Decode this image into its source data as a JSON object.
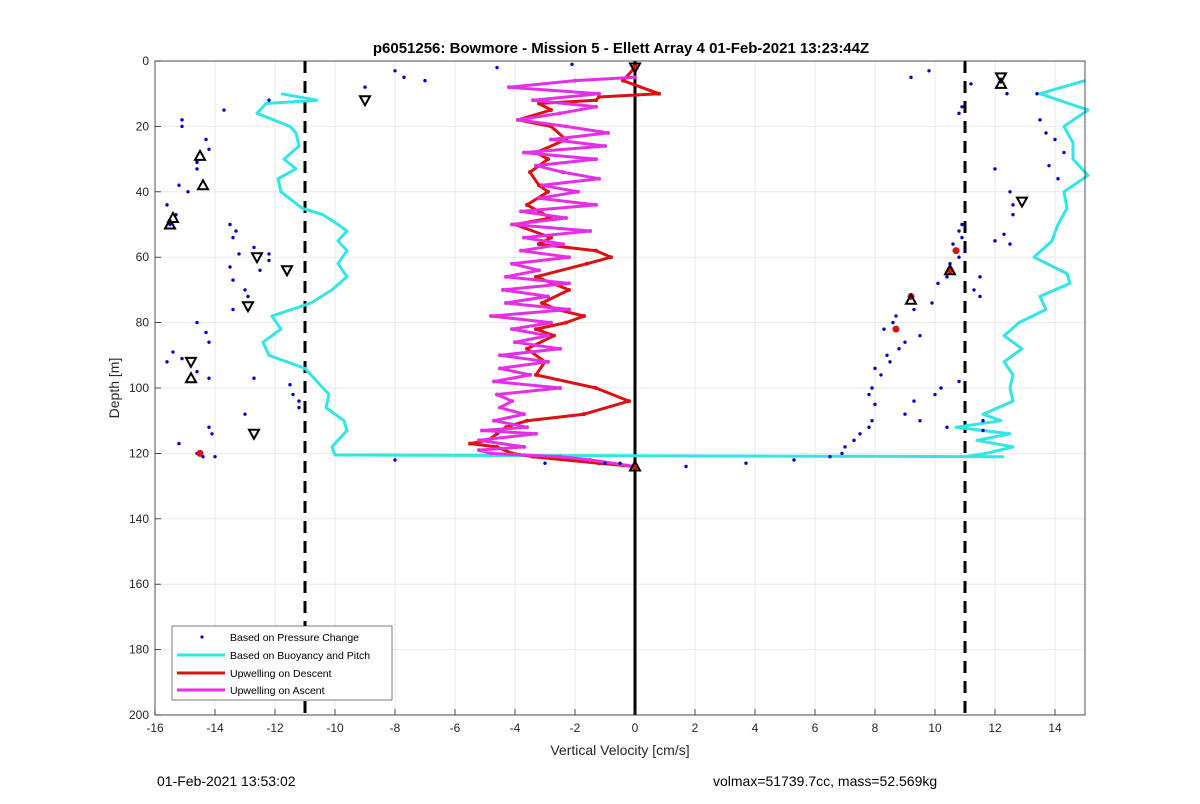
{
  "footer": {
    "timestamp": "01-Feb-2021 13:53:02",
    "vehicle_info": "volmax=51739.7cc, mass=52.569kg"
  },
  "chart_data": {
    "type": "line",
    "title": "p6051256: Bowmore - Mission 5 - Ellett Array 4 01-Feb-2021 13:23:44Z",
    "xlabel": "Vertical Velocity [cm/s]",
    "ylabel": "Depth [m]",
    "xlim": [
      -16,
      15
    ],
    "ylim": [
      0,
      200
    ],
    "y_reversed": true,
    "grid": true,
    "xticks": [
      -16,
      -14,
      -12,
      -10,
      -8,
      -6,
      -4,
      -2,
      0,
      2,
      4,
      6,
      8,
      10,
      12,
      14
    ],
    "yticks": [
      0,
      20,
      40,
      60,
      80,
      100,
      120,
      140,
      160,
      180,
      200
    ],
    "legend_position": "bottom-left",
    "legend": [
      "Based on Pressure Change",
      "Based on Buoyancy and Pitch",
      "Upwelling on Descent",
      "Upwelling on Ascent"
    ],
    "colors": {
      "pressure": "#0000cc",
      "buoyancy": "#33e5e5",
      "descent": "#dd1111",
      "ascent": "#e62ee6",
      "reference": "#000000"
    },
    "reference_lines": [
      {
        "x": -11,
        "style": "dashed"
      },
      {
        "x": 11,
        "style": "dashed"
      },
      {
        "x": 0,
        "style": "solid"
      }
    ],
    "series": [
      {
        "name": "Based on Buoyancy and Pitch",
        "key": "buoyancy",
        "depth": [
          10,
          12,
          13,
          16,
          20,
          22,
          26,
          30,
          33,
          36,
          40,
          45,
          47,
          50,
          52,
          55,
          58,
          62,
          66,
          70,
          74,
          78,
          82,
          86,
          90,
          94,
          98,
          102,
          106,
          110,
          113,
          118,
          120.5,
          121
        ],
        "velocity": [
          -11.8,
          -10.6,
          -12.3,
          -12.6,
          -11.5,
          -11.3,
          -11.2,
          -11.7,
          -11.3,
          -11.9,
          -11.8,
          -11.1,
          -10.4,
          -9.9,
          -9.6,
          -9.9,
          -9.6,
          -9.9,
          -9.6,
          -10.1,
          -10.8,
          -12.1,
          -11.8,
          -12.4,
          -12.2,
          -11.0,
          -10.6,
          -10.2,
          -10.3,
          -9.7,
          -9.6,
          -10.1,
          -10.0,
          12.3
        ]
      },
      {
        "name": "Based on Buoyancy and Pitch",
        "key": "buoyancy",
        "depth": [
          6,
          10,
          15,
          20,
          25,
          30,
          35,
          40,
          45,
          50,
          55,
          60,
          65,
          68,
          72,
          76,
          80,
          84,
          88,
          92,
          96,
          100,
          104,
          108,
          110,
          112,
          114,
          116,
          118,
          120,
          121
        ],
        "velocity": [
          15,
          13.5,
          15.1,
          14.3,
          14.6,
          14.6,
          15.1,
          14.3,
          14.4,
          14.1,
          13.9,
          13.3,
          14.4,
          14.5,
          13.5,
          13.7,
          12.8,
          12.3,
          12.9,
          12.3,
          12.6,
          12.5,
          12.6,
          11.6,
          12.2,
          10.7,
          12.5,
          11.4,
          12.6,
          11.7,
          11.0
        ]
      },
      {
        "name": "Upwelling on Descent",
        "key": "descent",
        "depth": [
          2,
          6,
          10,
          11,
          12,
          13,
          15,
          18,
          20,
          24,
          28,
          30,
          34,
          38,
          40,
          44,
          48,
          50,
          54,
          56,
          58,
          60,
          62,
          66,
          70,
          74,
          76,
          78,
          80,
          82,
          84,
          88,
          92,
          96,
          100,
          104,
          108,
          110,
          112,
          114,
          116,
          117,
          118,
          120,
          121,
          123,
          124
        ],
        "velocity": [
          0,
          -0.4,
          0.8,
          -1.2,
          -1.3,
          -3.2,
          -2.8,
          -3.9,
          -2.8,
          -2.3,
          -3.3,
          -2.9,
          -3.5,
          -3.2,
          -2.9,
          -3.6,
          -2.8,
          -4.0,
          -2.8,
          -3.2,
          -1.3,
          -0.8,
          -1.6,
          -3.3,
          -2.2,
          -3.1,
          -2.6,
          -1.7,
          -2.3,
          -3.3,
          -2.7,
          -3.6,
          -3.0,
          -3.3,
          -1.3,
          -0.2,
          -1.7,
          -3.6,
          -4.3,
          -4.6,
          -4.9,
          -5.5,
          -4.6,
          -4.1,
          -3.4,
          -1.2,
          0
        ]
      },
      {
        "name": "Upwelling on Ascent",
        "key": "ascent",
        "depth": [
          124,
          122,
          121,
          120,
          119,
          118,
          116,
          114,
          113,
          112,
          110,
          108,
          106,
          104,
          102,
          100,
          98,
          96,
          94,
          92,
          90,
          88,
          86,
          84,
          82,
          80,
          78,
          76,
          74,
          72,
          70,
          68,
          66,
          64,
          62,
          60,
          58,
          56,
          54,
          52,
          50,
          48,
          46,
          44,
          42,
          40,
          38,
          36,
          34,
          32,
          30,
          28,
          26,
          24,
          22,
          20,
          18,
          16,
          14,
          12,
          10,
          8,
          6,
          5
        ],
        "velocity": [
          0,
          -1.5,
          -2.5,
          -4.8,
          -5.2,
          -3.7,
          -5.2,
          -3.3,
          -5.1,
          -3.6,
          -4.7,
          -3.7,
          -4.5,
          -4.1,
          -4.6,
          -2.5,
          -4.7,
          -3.5,
          -4.5,
          -2.9,
          -4.5,
          -2.5,
          -4.0,
          -2.9,
          -4.1,
          -2.8,
          -4.8,
          -2.2,
          -4.3,
          -2.9,
          -4.4,
          -2.2,
          -4.3,
          -3.2,
          -4.1,
          -2.2,
          -3.8,
          -2.4,
          -3.7,
          -1.5,
          -4.1,
          -2.3,
          -3.8,
          -1.3,
          -3.2,
          -1.9,
          -3.1,
          -1.2,
          -2.4,
          -3.3,
          -1.3,
          -3.7,
          -1.0,
          -2.8,
          -0.9,
          -2.3,
          -3.9,
          -2.5,
          -1.3,
          -3.4,
          -1.2,
          -4.2,
          -2.0,
          0
        ]
      },
      {
        "name": "Based on Pressure Change",
        "key": "pressure",
        "points": [
          [
            -15.1,
            18
          ],
          [
            -15.1,
            20
          ],
          [
            -14.3,
            24
          ],
          [
            -14.2,
            27
          ],
          [
            -14.6,
            31
          ],
          [
            -14.6,
            33
          ],
          [
            -15.2,
            38
          ],
          [
            -14.9,
            40
          ],
          [
            -15.6,
            44
          ],
          [
            -15.3,
            47
          ],
          [
            -15.5,
            50
          ],
          [
            -13.5,
            50
          ],
          [
            -13.3,
            52
          ],
          [
            -13.4,
            54
          ],
          [
            -12.7,
            57
          ],
          [
            -13.2,
            59
          ],
          [
            -12.2,
            61
          ],
          [
            -13.5,
            63
          ],
          [
            -13.4,
            67
          ],
          [
            -13.0,
            70
          ],
          [
            -12.9,
            72
          ],
          [
            -13.4,
            76
          ],
          [
            -14.6,
            80
          ],
          [
            -14.3,
            83
          ],
          [
            -14.2,
            86
          ],
          [
            -15.4,
            89
          ],
          [
            -15.1,
            91
          ],
          [
            -15.6,
            92
          ],
          [
            -14.6,
            95
          ],
          [
            -14.2,
            97
          ],
          [
            -12.7,
            97
          ],
          [
            -11.5,
            99
          ],
          [
            -11.4,
            102
          ],
          [
            -11.2,
            104
          ],
          [
            -11.2,
            106
          ],
          [
            -13.0,
            108
          ],
          [
            -14.2,
            112
          ],
          [
            -14.1,
            114
          ],
          [
            -15.2,
            117
          ],
          [
            -14.6,
            120
          ],
          [
            -14.4,
            121
          ],
          [
            -14.0,
            121
          ],
          [
            -13.7,
            15
          ],
          [
            -12.2,
            12
          ],
          [
            -12.2,
            59
          ],
          [
            -12.5,
            64
          ],
          [
            -9.0,
            8
          ],
          [
            -8.0,
            3
          ],
          [
            -7.7,
            5
          ],
          [
            -7.0,
            6
          ],
          [
            -8.0,
            122
          ],
          [
            -4.6,
            2
          ],
          [
            -2.1,
            1
          ],
          [
            -3.0,
            123
          ],
          [
            -1.0,
            123
          ],
          [
            -0.5,
            123
          ],
          [
            1.7,
            124
          ],
          [
            3.7,
            123
          ],
          [
            5.3,
            122
          ],
          [
            6.5,
            121
          ],
          [
            6.9,
            120
          ],
          [
            7.0,
            118
          ],
          [
            7.3,
            116
          ],
          [
            7.5,
            114
          ],
          [
            7.8,
            112
          ],
          [
            7.9,
            110
          ],
          [
            8.0,
            105
          ],
          [
            7.8,
            102
          ],
          [
            7.9,
            100
          ],
          [
            8.2,
            96
          ],
          [
            8.0,
            94
          ],
          [
            8.5,
            92
          ],
          [
            8.4,
            90
          ],
          [
            8.8,
            88
          ],
          [
            9.0,
            86
          ],
          [
            9.5,
            84
          ],
          [
            8.3,
            82
          ],
          [
            8.6,
            80
          ],
          [
            8.7,
            78
          ],
          [
            9.3,
            76
          ],
          [
            9.9,
            74
          ],
          [
            10.1,
            68
          ],
          [
            10.4,
            66
          ],
          [
            10.5,
            62
          ],
          [
            10.8,
            60
          ],
          [
            11.0,
            58
          ],
          [
            10.6,
            56
          ],
          [
            10.8,
            52
          ],
          [
            10.9,
            50
          ],
          [
            10.9,
            54
          ],
          [
            9.2,
            5
          ],
          [
            9.8,
            3
          ],
          [
            11.2,
            7
          ],
          [
            10.9,
            14
          ],
          [
            10.8,
            16
          ],
          [
            12.4,
            10
          ],
          [
            12.0,
            33
          ],
          [
            12.5,
            40
          ],
          [
            12.6,
            44
          ],
          [
            12.6,
            47
          ],
          [
            12.3,
            53
          ],
          [
            12.5,
            56
          ],
          [
            13.4,
            10
          ],
          [
            13.5,
            18
          ],
          [
            13.7,
            22
          ],
          [
            14.0,
            24
          ],
          [
            14.3,
            28
          ],
          [
            13.8,
            32
          ],
          [
            14.1,
            36
          ],
          [
            12.0,
            55
          ],
          [
            11.5,
            66
          ],
          [
            11.3,
            70
          ],
          [
            11.5,
            72
          ],
          [
            10.8,
            98
          ],
          [
            10.2,
            100
          ],
          [
            10.0,
            102
          ],
          [
            9.3,
            104
          ],
          [
            9.0,
            108
          ],
          [
            9.5,
            110
          ],
          [
            10.4,
            112
          ],
          [
            11.6,
            110
          ],
          [
            11.6,
            113
          ]
        ]
      }
    ],
    "descent_markers_triangle": [
      [
        -14.5,
        29
      ],
      [
        -14.4,
        38
      ],
      [
        -15.4,
        48
      ],
      [
        -15.5,
        50
      ],
      [
        -14.8,
        97
      ],
      [
        10.5,
        64
      ],
      [
        9.2,
        73
      ],
      [
        12.2,
        7
      ],
      [
        0,
        124
      ]
    ],
    "ascent_markers_triangle": [
      [
        -9.0,
        12
      ],
      [
        -12.6,
        60
      ],
      [
        -11.6,
        64
      ],
      [
        -12.9,
        75
      ],
      [
        -14.8,
        92
      ],
      [
        -12.7,
        114
      ],
      [
        12.2,
        5
      ],
      [
        12.9,
        43
      ],
      [
        0,
        2
      ]
    ],
    "red_dot_markers": [
      [
        -14.5,
        120
      ],
      [
        10.7,
        58
      ],
      [
        8.7,
        82
      ],
      [
        9.2,
        72
      ],
      [
        10.5,
        64
      ],
      [
        0,
        124
      ],
      [
        0,
        2
      ]
    ]
  }
}
